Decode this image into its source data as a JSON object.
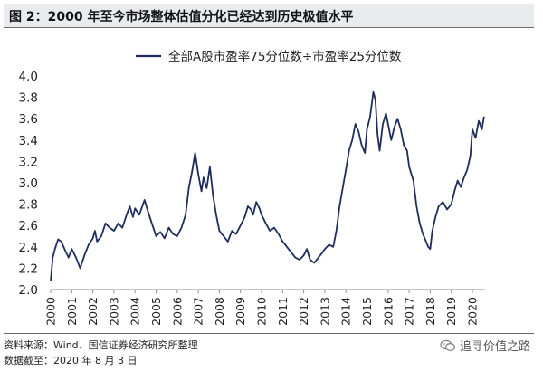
{
  "header": {
    "title": "图 2：2000 年至今市场整体估值分化已经达到历史极值水平"
  },
  "footer": {
    "source": "资料来源：Wind、国信证券经济研究所整理",
    "date": "数据截至：2020 年 8 月 3 日"
  },
  "watermark": {
    "text": "追寻价值之路"
  },
  "colors": {
    "series": "#1f2d5c",
    "axis": "#8c8c8c",
    "text": "#222222"
  },
  "chart_data": {
    "type": "line",
    "title": "",
    "xlabel": "",
    "ylabel": "",
    "xlim": [
      2000,
      2020.6
    ],
    "ylim": [
      2.0,
      4.0
    ],
    "grid": false,
    "legend_position": "top-center",
    "y_ticks": [
      "2.0",
      "2.2",
      "2.4",
      "2.6",
      "2.8",
      "3.0",
      "3.2",
      "3.4",
      "3.6",
      "3.8",
      "4.0"
    ],
    "x_ticks": [
      "2000",
      "2001",
      "2002",
      "2003",
      "2004",
      "2005",
      "2006",
      "2007",
      "2008",
      "2009",
      "2010",
      "2011",
      "2012",
      "2013",
      "2014",
      "2015",
      "2016",
      "2017",
      "2018",
      "2019",
      "2020"
    ],
    "series": [
      {
        "name": "全部A股市盈率75分位数÷市盈率25分位数",
        "color": "#1f2d5c",
        "points": [
          [
            2000.0,
            2.08
          ],
          [
            2000.1,
            2.3
          ],
          [
            2000.2,
            2.38
          ],
          [
            2000.35,
            2.47
          ],
          [
            2000.5,
            2.45
          ],
          [
            2000.7,
            2.36
          ],
          [
            2000.85,
            2.3
          ],
          [
            2001.0,
            2.38
          ],
          [
            2001.2,
            2.3
          ],
          [
            2001.4,
            2.2
          ],
          [
            2001.6,
            2.32
          ],
          [
            2001.8,
            2.42
          ],
          [
            2002.0,
            2.48
          ],
          [
            2002.1,
            2.55
          ],
          [
            2002.2,
            2.45
          ],
          [
            2002.4,
            2.5
          ],
          [
            2002.6,
            2.62
          ],
          [
            2002.8,
            2.58
          ],
          [
            2003.0,
            2.55
          ],
          [
            2003.2,
            2.62
          ],
          [
            2003.4,
            2.58
          ],
          [
            2003.6,
            2.7
          ],
          [
            2003.75,
            2.78
          ],
          [
            2003.9,
            2.68
          ],
          [
            2004.0,
            2.76
          ],
          [
            2004.2,
            2.7
          ],
          [
            2004.45,
            2.84
          ],
          [
            2004.6,
            2.74
          ],
          [
            2004.8,
            2.62
          ],
          [
            2005.0,
            2.5
          ],
          [
            2005.2,
            2.54
          ],
          [
            2005.4,
            2.48
          ],
          [
            2005.6,
            2.58
          ],
          [
            2005.8,
            2.52
          ],
          [
            2006.0,
            2.5
          ],
          [
            2006.2,
            2.58
          ],
          [
            2006.4,
            2.7
          ],
          [
            2006.55,
            2.95
          ],
          [
            2006.7,
            3.1
          ],
          [
            2006.85,
            3.28
          ],
          [
            2007.0,
            3.08
          ],
          [
            2007.15,
            2.92
          ],
          [
            2007.25,
            3.05
          ],
          [
            2007.4,
            2.95
          ],
          [
            2007.55,
            3.15
          ],
          [
            2007.7,
            2.88
          ],
          [
            2007.85,
            2.7
          ],
          [
            2008.0,
            2.55
          ],
          [
            2008.2,
            2.5
          ],
          [
            2008.4,
            2.45
          ],
          [
            2008.6,
            2.55
          ],
          [
            2008.8,
            2.52
          ],
          [
            2009.0,
            2.6
          ],
          [
            2009.2,
            2.68
          ],
          [
            2009.35,
            2.78
          ],
          [
            2009.5,
            2.75
          ],
          [
            2009.6,
            2.7
          ],
          [
            2009.75,
            2.82
          ],
          [
            2009.9,
            2.76
          ],
          [
            2010.0,
            2.7
          ],
          [
            2010.2,
            2.62
          ],
          [
            2010.4,
            2.55
          ],
          [
            2010.6,
            2.58
          ],
          [
            2010.8,
            2.52
          ],
          [
            2011.0,
            2.45
          ],
          [
            2011.2,
            2.4
          ],
          [
            2011.4,
            2.35
          ],
          [
            2011.6,
            2.3
          ],
          [
            2011.8,
            2.28
          ],
          [
            2012.0,
            2.32
          ],
          [
            2012.15,
            2.38
          ],
          [
            2012.3,
            2.28
          ],
          [
            2012.5,
            2.25
          ],
          [
            2012.7,
            2.3
          ],
          [
            2012.9,
            2.35
          ],
          [
            2013.0,
            2.38
          ],
          [
            2013.2,
            2.42
          ],
          [
            2013.4,
            2.4
          ],
          [
            2013.55,
            2.55
          ],
          [
            2013.7,
            2.78
          ],
          [
            2013.85,
            2.95
          ],
          [
            2014.0,
            3.12
          ],
          [
            2014.15,
            3.3
          ],
          [
            2014.3,
            3.4
          ],
          [
            2014.45,
            3.55
          ],
          [
            2014.6,
            3.48
          ],
          [
            2014.75,
            3.35
          ],
          [
            2014.9,
            3.28
          ],
          [
            2015.0,
            3.5
          ],
          [
            2015.15,
            3.62
          ],
          [
            2015.3,
            3.85
          ],
          [
            2015.4,
            3.78
          ],
          [
            2015.5,
            3.45
          ],
          [
            2015.6,
            3.3
          ],
          [
            2015.75,
            3.55
          ],
          [
            2015.9,
            3.65
          ],
          [
            2016.0,
            3.55
          ],
          [
            2016.15,
            3.4
          ],
          [
            2016.3,
            3.52
          ],
          [
            2016.45,
            3.6
          ],
          [
            2016.6,
            3.5
          ],
          [
            2016.75,
            3.35
          ],
          [
            2016.9,
            3.3
          ],
          [
            2017.0,
            3.15
          ],
          [
            2017.2,
            3.02
          ],
          [
            2017.35,
            2.78
          ],
          [
            2017.5,
            2.62
          ],
          [
            2017.65,
            2.52
          ],
          [
            2017.8,
            2.45
          ],
          [
            2017.9,
            2.4
          ],
          [
            2018.0,
            2.38
          ],
          [
            2018.1,
            2.55
          ],
          [
            2018.25,
            2.68
          ],
          [
            2018.4,
            2.78
          ],
          [
            2018.6,
            2.82
          ],
          [
            2018.8,
            2.75
          ],
          [
            2019.0,
            2.8
          ],
          [
            2019.15,
            2.92
          ],
          [
            2019.3,
            3.02
          ],
          [
            2019.45,
            2.96
          ],
          [
            2019.6,
            3.05
          ],
          [
            2019.75,
            3.12
          ],
          [
            2019.9,
            3.25
          ],
          [
            2020.0,
            3.5
          ],
          [
            2020.15,
            3.42
          ],
          [
            2020.3,
            3.58
          ],
          [
            2020.45,
            3.5
          ],
          [
            2020.55,
            3.62
          ]
        ]
      }
    ]
  }
}
